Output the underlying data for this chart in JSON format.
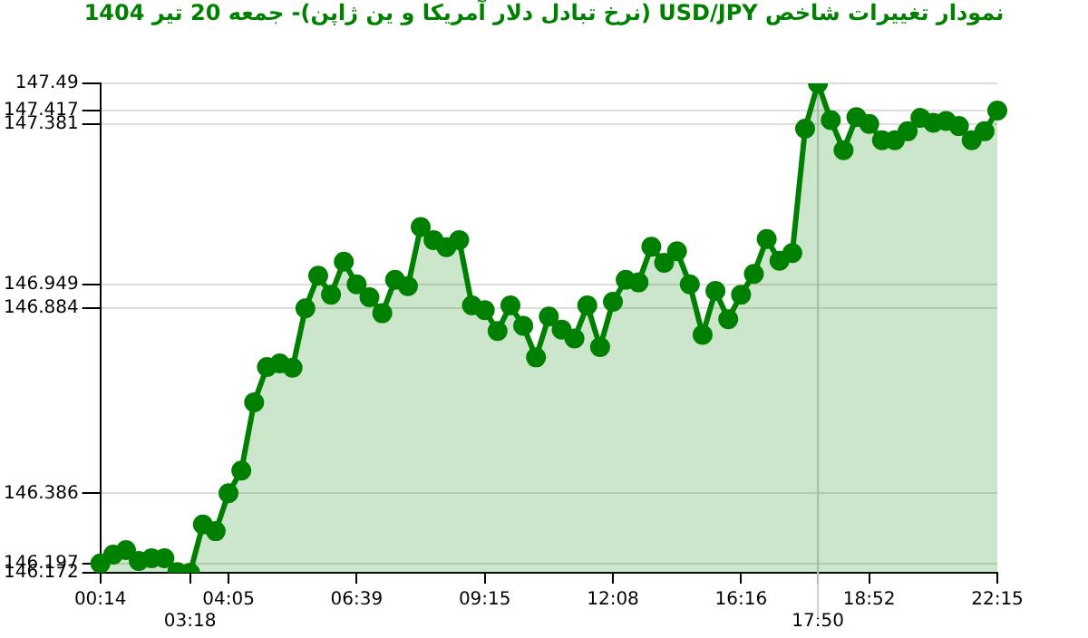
{
  "chart_data": {
    "type": "area",
    "title": "نمودار تغییرات شاخص USD/JPY (نرخ تبادل دلار آمریکا و ین ژاپن)- جمعه  20 تیر 1404",
    "categories": [
      "00:14",
      null,
      null,
      null,
      null,
      null,
      null,
      "03:18",
      null,
      null,
      "04:05",
      null,
      null,
      null,
      null,
      null,
      null,
      null,
      null,
      null,
      "06:39",
      null,
      null,
      null,
      null,
      null,
      null,
      null,
      null,
      null,
      "09:15",
      null,
      null,
      null,
      null,
      null,
      null,
      null,
      null,
      null,
      "12:08",
      null,
      null,
      null,
      null,
      null,
      null,
      null,
      null,
      null,
      "16:16",
      null,
      null,
      null,
      null,
      null,
      "17:50",
      null,
      null,
      null,
      "18:52",
      null,
      null,
      null,
      null,
      null,
      null,
      null,
      null,
      null,
      "22:15"
    ],
    "series": [
      {
        "color": "#008000",
        "values": [
          146.197,
          146.221,
          146.233,
          146.204,
          146.211,
          146.211,
          146.174,
          146.172,
          146.302,
          146.284,
          146.386,
          146.447,
          146.631,
          146.726,
          146.736,
          146.724,
          146.884,
          146.972,
          146.921,
          147.01,
          146.949,
          146.914,
          146.871,
          146.961,
          146.944,
          147.103,
          147.068,
          147.049,
          147.068,
          146.892,
          146.879,
          146.823,
          146.892,
          146.837,
          146.752,
          146.862,
          146.827,
          146.803,
          146.892,
          146.78,
          146.902,
          146.961,
          146.954,
          147.05,
          147.007,
          147.038,
          146.949,
          146.813,
          146.931,
          146.855,
          146.921,
          146.977,
          147.071,
          147.012,
          147.033,
          147.368,
          147.49,
          147.391,
          147.31,
          147.399,
          147.381,
          147.337,
          147.337,
          147.361,
          147.397,
          147.384,
          147.389,
          147.375,
          147.337,
          147.361,
          147.417
        ]
      }
    ],
    "ylim": [
      146.172,
      147.49
    ],
    "yticks": [
      147.49,
      147.417,
      147.381,
      146.949,
      146.884,
      146.386,
      146.197,
      146.172
    ],
    "ref_lines": [
      {
        "axis": "x",
        "value": "17:50",
        "color": "#cccccc"
      }
    ],
    "grid": "y",
    "legend": false,
    "marker": "circle"
  }
}
